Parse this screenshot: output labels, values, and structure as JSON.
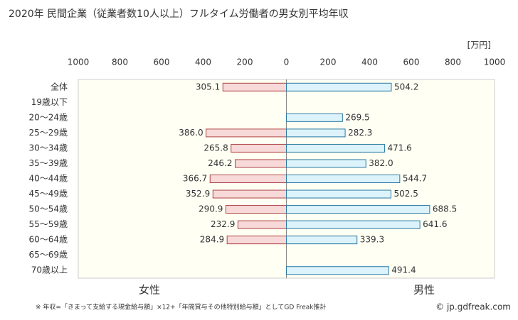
{
  "chart_data": {
    "type": "bar",
    "orientation": "horizontal",
    "title": "2020年 民間企業（従業者数10人以上）フルタイム労働者の男女別平均年収",
    "unit": "[万円]",
    "categories": [
      "全体",
      "19歳以下",
      "20～24歳",
      "25～29歳",
      "30～34歳",
      "35～39歳",
      "40～44歳",
      "45～49歳",
      "50～54歳",
      "55～59歳",
      "60～64歳",
      "65～69歳",
      "70歳以上"
    ],
    "series": [
      {
        "name": "女性",
        "side": "left",
        "color": "#f7d9d9",
        "stroke": "#b04545",
        "text_color": "#b04545",
        "values": [
          305.1,
          null,
          null,
          386.0,
          265.8,
          246.2,
          366.7,
          352.9,
          290.9,
          232.9,
          284.9,
          null,
          null
        ],
        "value_labels": [
          "305.1",
          null,
          null,
          "386.0",
          "265.8",
          "246.2",
          "366.7",
          "352.9",
          "290.9",
          "232.9",
          "284.9",
          null,
          null
        ]
      },
      {
        "name": "男性",
        "side": "right",
        "color": "#ddf3fb",
        "stroke": "#2a7aa3",
        "text_color": "#3a8fc0",
        "values": [
          504.2,
          null,
          269.5,
          282.3,
          471.6,
          382.0,
          544.7,
          502.5,
          688.5,
          641.6,
          339.3,
          null,
          491.4
        ],
        "value_labels": [
          "504.2",
          null,
          "269.5",
          "282.3",
          "471.6",
          "382.0",
          "544.7",
          "502.5",
          "688.5",
          "641.6",
          "339.3",
          null,
          "491.4"
        ]
      }
    ],
    "xlim": [
      -1000,
      1000
    ],
    "xticks": [
      {
        "value": -1000,
        "label": "1000"
      },
      {
        "value": -800,
        "label": "800"
      },
      {
        "value": -600,
        "label": "600"
      },
      {
        "value": -400,
        "label": "400"
      },
      {
        "value": -200,
        "label": "200"
      },
      0,
      200,
      400,
      600,
      800,
      1000
    ],
    "footnote": "※ 年収=「きまって支給する現金給与額」×12+「年間賞与その他特別給与額」としてGD Freak推計",
    "credit": "© jp.gdfreak.com"
  }
}
